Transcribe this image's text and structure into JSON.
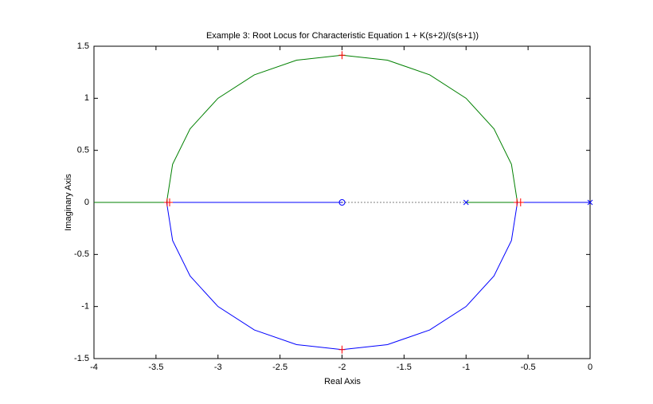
{
  "chart_data": {
    "type": "line",
    "title": "Example 3:  Root Locus for Characteristic Equation 1 + K(s+2)/(s(s+1))",
    "xlabel": "Real Axis",
    "ylabel": "Imaginary Axis",
    "xlim": [
      -4,
      0
    ],
    "ylim": [
      -1.5,
      1.5
    ],
    "xticks": [
      -4,
      -3.5,
      -3,
      -2.5,
      -2,
      -1.5,
      -1,
      -0.5,
      0
    ],
    "yticks": [
      -1.5,
      -1,
      -0.5,
      0,
      0.5,
      1,
      1.5
    ],
    "grid": false,
    "series": [
      {
        "color": "#008000",
        "line_style": "solid",
        "marker": "none",
        "x": [
          -1,
          -0.586,
          -0.634,
          -0.775,
          -1.0,
          -1.293,
          -1.634,
          -2,
          -2.366,
          -2.707,
          -3.0,
          -3.225,
          -3.366,
          -3.414,
          -4
        ],
        "y": [
          0,
          0,
          0.366,
          0.707,
          1.0,
          1.225,
          1.366,
          1.414,
          1.366,
          1.225,
          1.0,
          0.707,
          0.366,
          0,
          0
        ]
      },
      {
        "color": "#0000ff",
        "line_style": "solid",
        "marker": "none",
        "x": [
          0,
          -0.586,
          -0.634,
          -0.775,
          -1.0,
          -1.293,
          -1.634,
          -2,
          -2.366,
          -2.707,
          -3.0,
          -3.225,
          -3.366,
          -3.414,
          -2
        ],
        "y": [
          0,
          0,
          -0.366,
          -0.707,
          -1.0,
          -1.225,
          -1.366,
          -1.414,
          -1.366,
          -1.225,
          -1.0,
          -0.707,
          -0.366,
          0,
          0
        ]
      },
      {
        "color": "#000000",
        "line_style": "dotted",
        "marker": "none",
        "x": [
          -2,
          -1
        ],
        "y": [
          0,
          0
        ]
      },
      {
        "color": "#0000ff",
        "line_style": "none",
        "marker": "x",
        "x": [
          0,
          -1
        ],
        "y": [
          0,
          0
        ]
      },
      {
        "color": "#0000ff",
        "line_style": "none",
        "marker": "o",
        "x": [
          -2
        ],
        "y": [
          0
        ]
      },
      {
        "color": "#ff0000",
        "line_style": "none",
        "marker": "+",
        "x": [
          -3.41,
          -3.39,
          -2,
          -2,
          -0.59,
          -0.56
        ],
        "y": [
          0,
          0,
          1.414,
          -1.414,
          0,
          0
        ]
      }
    ]
  }
}
